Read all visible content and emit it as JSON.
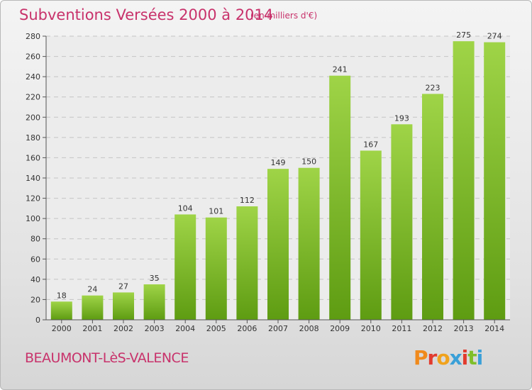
{
  "header": {
    "title": "Subventions Versées 2000 à 2014",
    "subtitle": "(en milliers d'€)"
  },
  "footer": {
    "commune": "BEAUMONT-LèS-VALENCE",
    "logo_text": "Proxiti"
  },
  "colors": {
    "title": "#c8326b",
    "bar_top": "#9fd447",
    "bar_bottom": "#5e9c12",
    "logo_letters": [
      "#f08a1c",
      "#e23b2e",
      "#f0a21c",
      "#3aa0d8",
      "#e23b2e",
      "#7fbf2a",
      "#3aa0d8"
    ]
  },
  "chart_data": {
    "type": "bar",
    "categories": [
      "2000",
      "2001",
      "2002",
      "2003",
      "2004",
      "2005",
      "2006",
      "2007",
      "2008",
      "2009",
      "2010",
      "2011",
      "2012",
      "2013",
      "2014"
    ],
    "values": [
      18,
      24,
      27,
      35,
      104,
      101,
      112,
      149,
      150,
      241,
      167,
      193,
      223,
      275,
      274
    ],
    "title": "Subventions Versées 2000 à 2014",
    "ylim": [
      0,
      280
    ],
    "yticks": [
      0,
      20,
      40,
      60,
      80,
      100,
      120,
      140,
      160,
      180,
      200,
      220,
      240,
      260,
      280
    ],
    "grid": true,
    "data_labels": true
  }
}
